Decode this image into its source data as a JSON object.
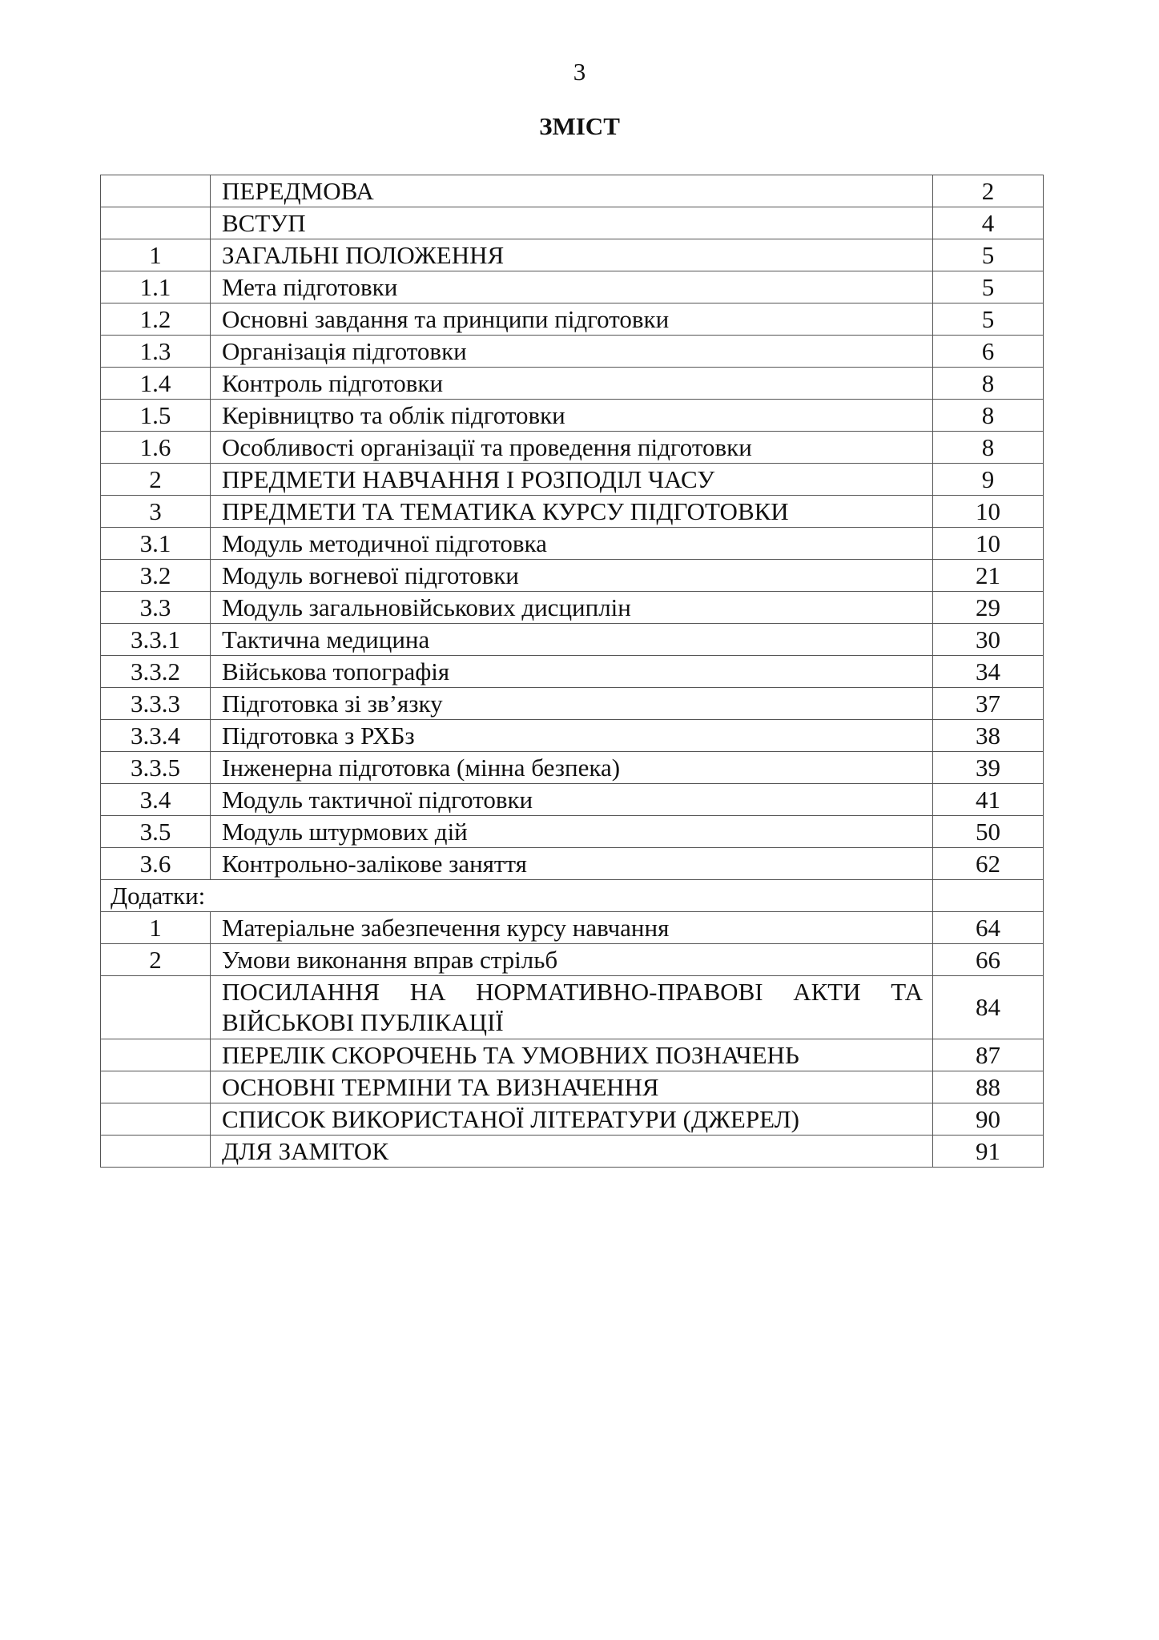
{
  "page_number": "3",
  "title": "ЗМІСТ",
  "toc": [
    {
      "num": "",
      "text": "ПЕРЕДМОВА",
      "page": "2"
    },
    {
      "num": "",
      "text": "ВСТУП",
      "page": "4"
    },
    {
      "num": "1",
      "text": "ЗАГАЛЬНІ ПОЛОЖЕННЯ",
      "page": "5"
    },
    {
      "num": "1.1",
      "text": "Мета підготовки",
      "page": "5"
    },
    {
      "num": "1.2",
      "text": "Основні завдання та принципи підготовки",
      "page": "5"
    },
    {
      "num": "1.3",
      "text": "Організація підготовки",
      "page": "6"
    },
    {
      "num": "1.4",
      "text": "Контроль підготовки",
      "page": "8"
    },
    {
      "num": "1.5",
      "text": "Керівництво та облік підготовки",
      "page": "8"
    },
    {
      "num": "1.6",
      "text": "Особливості організації та проведення підготовки",
      "page": "8"
    },
    {
      "num": "2",
      "text": "ПРЕДМЕТИ НАВЧАННЯ І РОЗПОДІЛ ЧАСУ",
      "page": "9"
    },
    {
      "num": "3",
      "text": "ПРЕДМЕТИ ТА ТЕМАТИКА КУРСУ ПІДГОТОВКИ",
      "page": "10"
    },
    {
      "num": "3.1",
      "text": "Модуль методичної підготовка",
      "page": "10"
    },
    {
      "num": "3.2",
      "text": "Модуль вогневої підготовки",
      "page": "21"
    },
    {
      "num": "3.3",
      "text": "Модуль загальновійськових дисциплін",
      "page": "29"
    },
    {
      "num": "3.3.1",
      "text": "Тактична медицина",
      "page": "30"
    },
    {
      "num": "3.3.2",
      "text": "Військова топографія",
      "page": "34"
    },
    {
      "num": "3.3.3",
      "text": "Підготовка зі зв’язку",
      "page": "37"
    },
    {
      "num": "3.3.4",
      "text": "Підготовка з РХБз",
      "page": "38"
    },
    {
      "num": "3.3.5",
      "text": "Інженерна підготовка (мінна безпека)",
      "page": "39"
    },
    {
      "num": "3.4",
      "text": "Модуль тактичної підготовки",
      "page": "41"
    },
    {
      "num": "3.5",
      "text": "Модуль штурмових дій",
      "page": "50"
    },
    {
      "num": "3.6",
      "text": "Контрольно-залікове заняття",
      "page": "62"
    },
    {
      "section": "Додатки:"
    },
    {
      "num": "1",
      "text": "Матеріальне забезпечення курсу навчання",
      "page": "64"
    },
    {
      "num": "2",
      "text": "Умови виконання вправ стрільб",
      "page": "66"
    },
    {
      "num": "",
      "text": "ПОСИЛАННЯ НА НОРМАТИВНО-ПРАВОВІ АКТИ ТА ВІЙСЬКОВІ ПУБЛІКАЦІЇ",
      "page": "84",
      "wrap": true
    },
    {
      "num": "",
      "text": "ПЕРЕЛІК СКОРОЧЕНЬ ТА УМОВНИХ ПОЗНАЧЕНЬ",
      "page": "87"
    },
    {
      "num": "",
      "text": "ОСНОВНІ ТЕРМІНИ ТА ВИЗНАЧЕННЯ",
      "page": "88"
    },
    {
      "num": "",
      "text": "СПИСОК ВИКОРИСТАНОЇ ЛІТЕРАТУРИ (ДЖЕРЕЛ)",
      "page": "90"
    },
    {
      "num": "",
      "text": "ДЛЯ ЗАМІТОК",
      "page": "91"
    }
  ]
}
